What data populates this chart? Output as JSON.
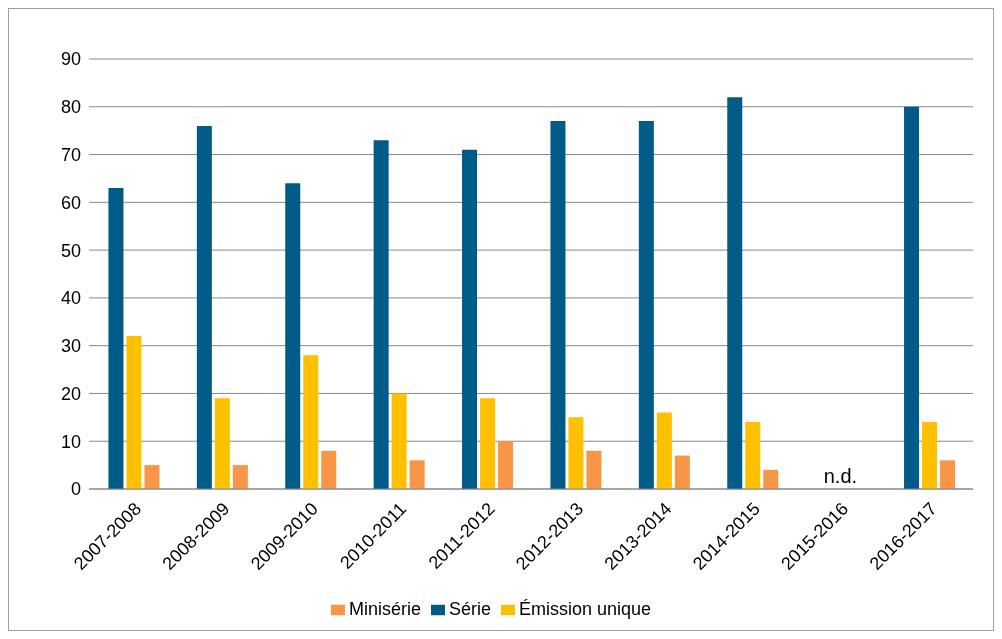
{
  "chart_data": {
    "type": "bar",
    "categories": [
      "2007-2008",
      "2008-2009",
      "2009-2010",
      "2010-2011",
      "2011-2012",
      "2012-2013",
      "2013-2014",
      "2014-2015",
      "2015-2016",
      "2016-2017"
    ],
    "series": [
      {
        "name": "Série",
        "color": "#005b88",
        "values": [
          63,
          76,
          64,
          73,
          71,
          77,
          77,
          82,
          null,
          80
        ]
      },
      {
        "name": "Émission unique",
        "color": "#ffc000",
        "values": [
          32,
          19,
          28,
          20,
          19,
          15,
          16,
          14,
          null,
          14
        ]
      },
      {
        "name": "Minisérie",
        "color": "#f79646",
        "values": [
          5,
          5,
          8,
          6,
          10,
          8,
          7,
          4,
          null,
          6
        ]
      }
    ],
    "ylim": [
      0,
      90
    ],
    "yticks": [
      0,
      10,
      20,
      30,
      40,
      50,
      60,
      70,
      80,
      90
    ],
    "grid": "y",
    "legend": "bottom",
    "annotations": [
      "n.d."
    ]
  }
}
